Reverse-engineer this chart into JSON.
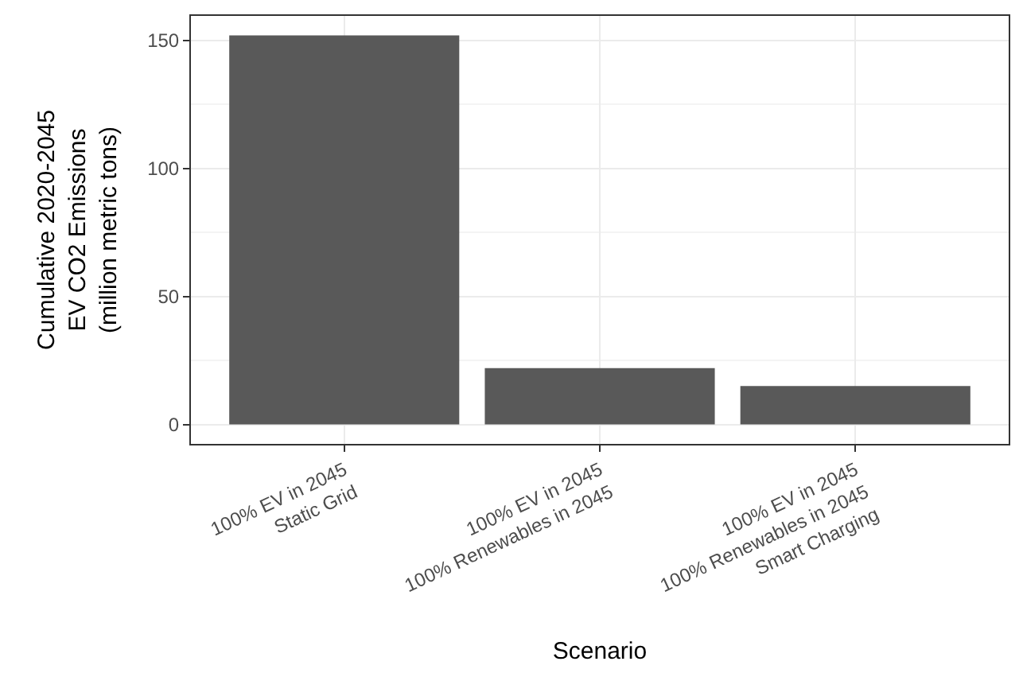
{
  "chart_data": {
    "type": "bar",
    "categories": [
      "100% EV in 2045\nStatic Grid",
      "100% EV in 2045\n100% Renewables in 2045",
      "100% EV in 2045\n100% Renewables in 2045\nSmart Charging"
    ],
    "values": [
      152,
      22,
      15
    ],
    "color": "#595959",
    "xlabel": "Scenario",
    "ylabel": "Cumulative 2020-2045\nEV CO2 Emissions\n(million metric tons)",
    "ylim": [
      -7.6,
      159.6
    ],
    "yticks": [
      0,
      50,
      100,
      150
    ],
    "grid": true,
    "legend": false
  }
}
